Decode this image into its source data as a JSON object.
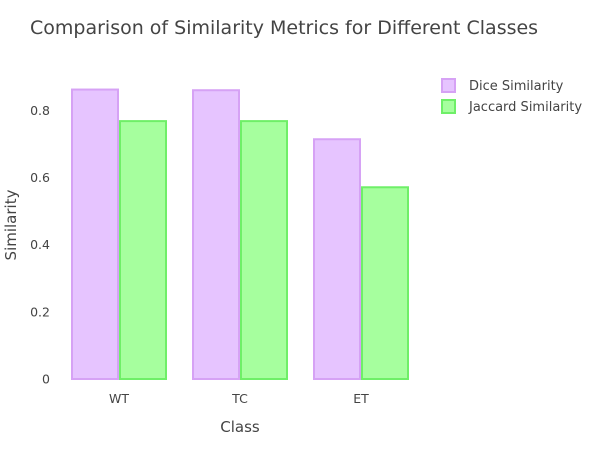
{
  "chart_data": {
    "type": "bar",
    "title": "Comparison of Similarity Metrics for Different Classes",
    "xlabel": "Class",
    "ylabel": "Similarity",
    "categories": [
      "WT",
      "TC",
      "ET"
    ],
    "series": [
      {
        "name": "Dice Similarity",
        "values": [
          0.862,
          0.86,
          0.714
        ],
        "fill": "#e6c4ff",
        "stroke": "#d6a2f5"
      },
      {
        "name": "Jaccard Similarity",
        "values": [
          0.768,
          0.768,
          0.571
        ],
        "fill": "#a6ff9e",
        "stroke": "#6fef68"
      }
    ],
    "ylim": [
      0,
      0.95
    ],
    "yticks": [
      0,
      0.2,
      0.4,
      0.6,
      0.8
    ],
    "ytick_labels": [
      "0",
      "0.2",
      "0.4",
      "0.6",
      "0.8"
    ],
    "grid": false,
    "legend_position": "top-right"
  }
}
